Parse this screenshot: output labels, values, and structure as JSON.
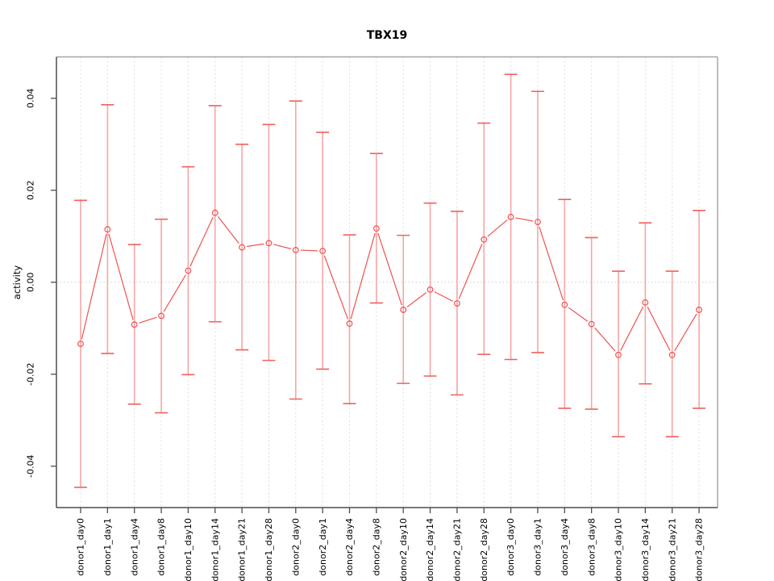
{
  "title": "TBX19",
  "chart_data": {
    "type": "line",
    "title": "TBX19",
    "xlabel": "",
    "ylabel": "activity",
    "legend": "none",
    "grid": "vertical dashed gridlines at each category; dotted horizontal line at y=0",
    "marker": "open-circle",
    "error_bars": true,
    "ylim": [
      -0.049,
      0.049
    ],
    "yticks": [
      -0.04,
      -0.02,
      0.0,
      0.02,
      0.04
    ],
    "ytick_labels": [
      "-0.04",
      "-0.02",
      "0.00",
      "0.02",
      "0.04"
    ],
    "categories": [
      "donor1_day0",
      "donor1_day1",
      "donor1_day4",
      "donor1_day8",
      "donor1_day10",
      "donor1_day14",
      "donor1_day21",
      "donor1_day28",
      "donor2_day0",
      "donor2_day1",
      "donor2_day4",
      "donor2_day8",
      "donor2_day10",
      "donor2_day14",
      "donor2_day21",
      "donor2_day28",
      "donor3_day0",
      "donor3_day1",
      "donor3_day4",
      "donor3_day8",
      "donor3_day10",
      "donor3_day14",
      "donor3_day21",
      "donor3_day28"
    ],
    "series": [
      {
        "name": "activity",
        "values": [
          -0.0134,
          0.0115,
          -0.0092,
          -0.0073,
          0.0025,
          0.0151,
          0.0076,
          0.0085,
          0.007,
          0.0068,
          -0.009,
          0.0117,
          -0.006,
          -0.0016,
          -0.0046,
          0.0093,
          0.0142,
          0.0131,
          -0.0049,
          -0.0091,
          -0.0158,
          -0.0044,
          -0.0158,
          -0.006
        ],
        "error_high": [
          0.0178,
          0.0386,
          0.0082,
          0.0137,
          0.0251,
          0.0384,
          0.03,
          0.0343,
          0.0394,
          0.0326,
          0.0103,
          0.028,
          0.0102,
          0.0172,
          0.0154,
          0.0346,
          0.0452,
          0.0415,
          0.018,
          0.0097,
          0.0024,
          0.0129,
          0.0024,
          0.0156
        ],
        "error_low": [
          -0.0446,
          -0.0155,
          -0.0265,
          -0.0284,
          -0.0201,
          -0.0086,
          -0.0147,
          -0.017,
          -0.0254,
          -0.0189,
          -0.0264,
          -0.0045,
          -0.022,
          -0.0204,
          -0.0245,
          -0.0157,
          -0.0168,
          -0.0153,
          -0.0274,
          -0.0276,
          -0.0336,
          -0.0221,
          -0.0336,
          -0.0274
        ]
      }
    ],
    "colors": {
      "line": "#ef5252",
      "marker": "#ef5252",
      "error_bar": "#f7a6a6",
      "error_cap": "#f06060",
      "gridline": "#dcdcdc",
      "zero_line": "#c9c9c9",
      "axis": "#4d4d4d",
      "box": "#a6a6a6",
      "text": "#000000",
      "background": "#ffffff"
    }
  }
}
